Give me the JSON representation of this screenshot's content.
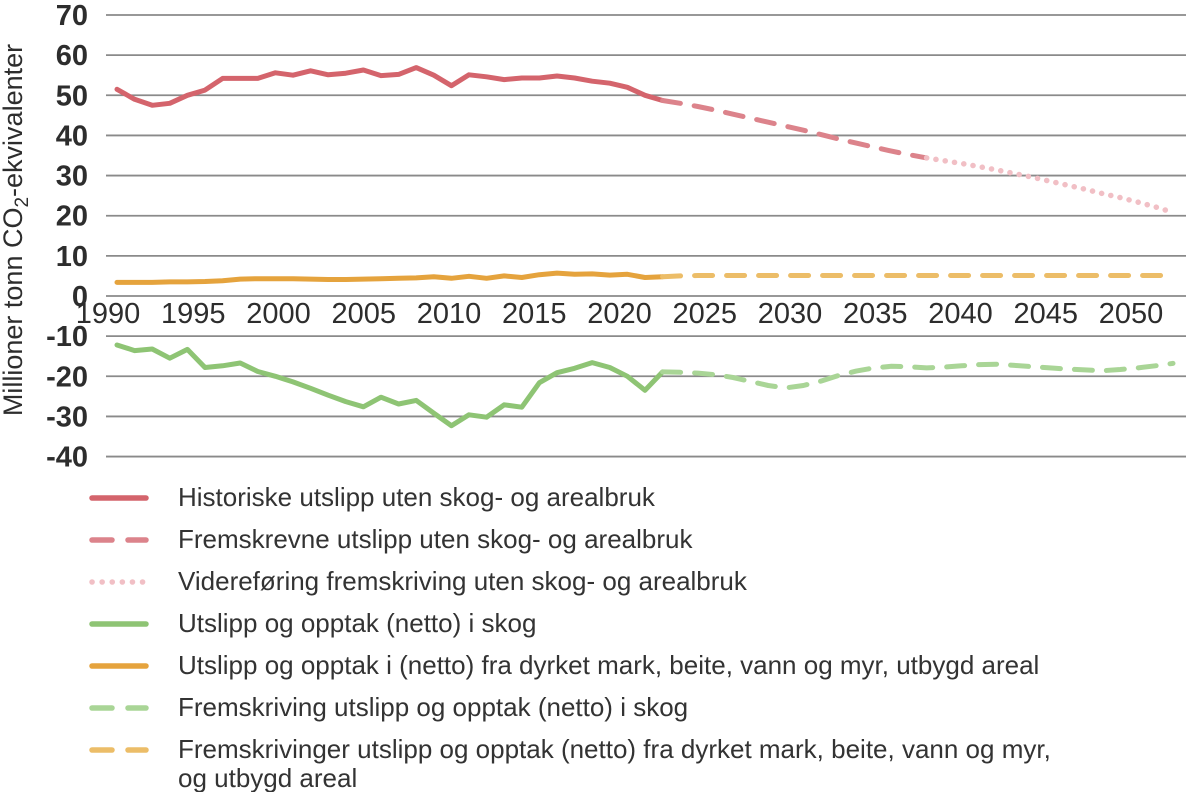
{
  "chart_data": {
    "type": "line",
    "title": "",
    "ylabel_parts": [
      "Millioner tonn CO",
      "2",
      "-ekvivalenter"
    ],
    "xlabel": "",
    "xlim": [
      1990,
      2050
    ],
    "ylim": [
      -40,
      70
    ],
    "grid": "horizontal",
    "legend_position": "bottom-left",
    "x_ticks": [
      1990,
      1995,
      2000,
      2005,
      2010,
      2015,
      2020,
      2025,
      2030,
      2035,
      2040,
      2045,
      2050
    ],
    "y_ticks": [
      70,
      60,
      50,
      40,
      30,
      20,
      10,
      0,
      -10,
      -20,
      -30,
      -40
    ],
    "colors": {
      "grid": "#8a8a8a",
      "axis_text": "#2d2d2d",
      "legend_text": "#333333"
    },
    "series": [
      {
        "key": "historical-emissions",
        "name": "Historiske utslipp uten skog- og arealbruk",
        "color": "#d4646c",
        "line_style": "solid",
        "x_start": 1990,
        "values": [
          51.5,
          49.0,
          47.5,
          48.0,
          50.0,
          51.3,
          54.2,
          54.2,
          54.2,
          55.6,
          55.0,
          56.1,
          55.1,
          55.5,
          56.3,
          54.9,
          55.2,
          56.9,
          55.0,
          52.4,
          55.1,
          54.6,
          53.9,
          54.3,
          54.3,
          54.8,
          54.3,
          53.5,
          53.0,
          52.0,
          50.0,
          48.7
        ]
      },
      {
        "key": "projected-emissions",
        "name": "Fremskrevne utslipp uten skog- og arealbruk",
        "color": "#dc838b",
        "line_style": "dashed",
        "x_start": 2021,
        "values": [
          48.7,
          48.0,
          47.2,
          46.3,
          45.3,
          44.3,
          43.3,
          42.3,
          41.3,
          40.2,
          39.1,
          38.1,
          37.1,
          36.1,
          35.2,
          34.4
        ]
      },
      {
        "key": "continued-projection",
        "name": "Videreføring fremskriving uten skog- og arealbruk",
        "color": "#f1bfc5",
        "line_style": "dotted",
        "x_start": 2036,
        "values": [
          34.4,
          33.7,
          33.0,
          32.2,
          31.4,
          30.5,
          29.6,
          28.6,
          27.6,
          26.6,
          25.5,
          24.5,
          23.4,
          22.2,
          20.8
        ]
      },
      {
        "key": "forest-net",
        "name": "Utslipp og opptak (netto) i skog",
        "color": "#8ec474",
        "line_style": "solid",
        "x_start": 1990,
        "values": [
          -12.2,
          -13.6,
          -13.2,
          -15.5,
          -13.3,
          -17.8,
          -17.4,
          -16.7,
          -18.8,
          -20.0,
          -21.4,
          -23.0,
          -24.7,
          -26.3,
          -27.6,
          -25.2,
          -26.9,
          -26.0,
          -29.2,
          -32.3,
          -29.6,
          -30.2,
          -27.1,
          -27.7,
          -21.6,
          -19.1,
          -18.0,
          -16.6,
          -17.8,
          -20.0,
          -23.5,
          -18.9
        ]
      },
      {
        "key": "land-use-net",
        "name": "Utslipp og opptak i (netto) fra dyrket mark, beite, vann og myr, utbygd areal",
        "color": "#e5a33d",
        "line_style": "solid",
        "x_start": 1990,
        "values": [
          3.4,
          3.4,
          3.4,
          3.5,
          3.5,
          3.6,
          3.8,
          4.2,
          4.3,
          4.3,
          4.3,
          4.2,
          4.1,
          4.1,
          4.2,
          4.3,
          4.4,
          4.5,
          4.8,
          4.4,
          4.9,
          4.4,
          5.0,
          4.6,
          5.3,
          5.7,
          5.4,
          5.5,
          5.2,
          5.4,
          4.6,
          4.8
        ]
      },
      {
        "key": "forest-net-projection",
        "name": "Fremskriving utslipp og opptak (netto) i skog",
        "color": "#a9d596",
        "line_style": "dashed",
        "x_start": 2021,
        "values": [
          -18.9,
          -19.0,
          -19.2,
          -19.6,
          -20.3,
          -21.3,
          -22.3,
          -22.9,
          -22.3,
          -21.2,
          -19.8,
          -18.7,
          -17.9,
          -17.5,
          -17.6,
          -17.9,
          -17.7,
          -17.4,
          -17.1,
          -17.0,
          -17.3,
          -17.6,
          -17.9,
          -18.2,
          -18.4,
          -18.6,
          -18.3,
          -17.9,
          -17.4,
          -16.8
        ]
      },
      {
        "key": "land-use-net-projection",
        "name": "Fremskrivinger utslipp og opptak (netto) fra dyrket mark, beite, vann og myr,\nog utbygd areal",
        "color": "#ecbd68",
        "line_style": "dashed",
        "x_start": 2021,
        "values": [
          4.8,
          5.0,
          5.1,
          5.1,
          5.1,
          5.1,
          5.1,
          5.1,
          5.1,
          5.1,
          5.1,
          5.1,
          5.1,
          5.1,
          5.1,
          5.1,
          5.1,
          5.1,
          5.1,
          5.1,
          5.1,
          5.1,
          5.1,
          5.1,
          5.1,
          5.1,
          5.1,
          5.1,
          5.1,
          5.1
        ]
      }
    ]
  }
}
